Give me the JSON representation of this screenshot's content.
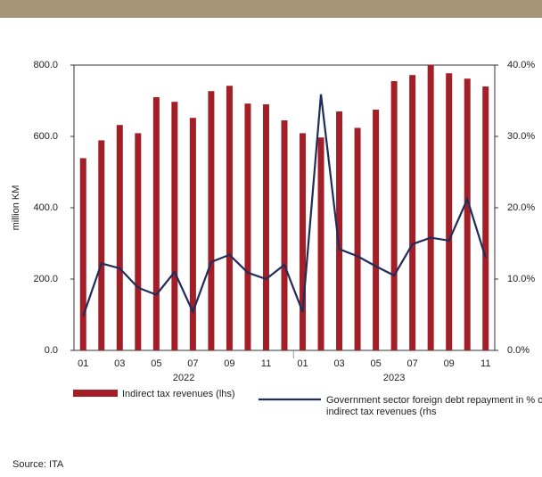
{
  "chart_data": {
    "type": "bar_line",
    "y_label": "million KM",
    "categories": [
      "01",
      null,
      "03",
      null,
      "05",
      null,
      "07",
      null,
      "09",
      null,
      "11",
      null,
      "01",
      null,
      "03",
      null,
      "05",
      null,
      "07",
      null,
      "09",
      null,
      "11"
    ],
    "groups": [
      "2022",
      "2023"
    ],
    "group_sizes": [
      12,
      11
    ],
    "series": [
      {
        "name": "Indirect tax revenues (lhs)",
        "type": "bar",
        "color": "#a31f28",
        "values": [
          539,
          589,
          632,
          609,
          710,
          697,
          652,
          727,
          742,
          692,
          690,
          645,
          609,
          597,
          670,
          624,
          675,
          755,
          772,
          800,
          777,
          762,
          740
        ]
      },
      {
        "name": "Government sector foreign debt repayment in % of indirect tax revenues (rhs",
        "type": "line",
        "axis": "y2",
        "color": "#1f2d5a",
        "values": [
          4.8,
          12.2,
          11.5,
          8.8,
          7.8,
          11.0,
          5.4,
          12.4,
          13.4,
          10.9,
          10.0,
          12.0,
          5.4,
          35.9,
          14.2,
          13.2,
          11.8,
          10.5,
          14.9,
          15.8,
          15.4,
          21.2,
          13.0
        ]
      }
    ],
    "ylim": [
      0,
      800
    ],
    "yticks": [
      {
        "value": 0,
        "label": "0.0"
      },
      {
        "value": 200,
        "label": "200.0"
      },
      {
        "value": 400,
        "label": "400.0"
      },
      {
        "value": 600,
        "label": "600.0"
      },
      {
        "value": 800,
        "label": "800.0"
      }
    ],
    "y2lim": [
      0,
      40
    ],
    "y2ticks": [
      {
        "value": 0,
        "label": "0.0%"
      },
      {
        "value": 10,
        "label": "10.0%"
      },
      {
        "value": 20,
        "label": "20.0%"
      },
      {
        "value": 30,
        "label": "30.0%"
      },
      {
        "value": 40,
        "label": "40.0%"
      }
    ],
    "source": "Source: ITA"
  }
}
